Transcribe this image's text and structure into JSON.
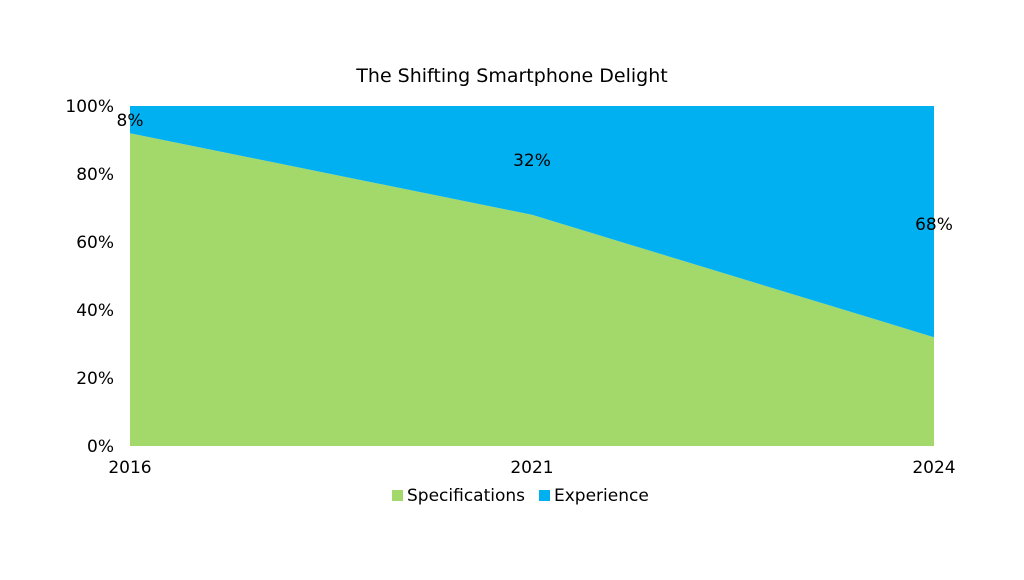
{
  "chart_data": {
    "type": "area",
    "stacked": true,
    "percent": true,
    "title": "The Shifting Smartphone Delight",
    "categories": [
      "2016",
      "2021",
      "2024"
    ],
    "series": [
      {
        "name": "Specifications",
        "values": [
          92,
          68,
          32
        ],
        "color": "#a3d86b"
      },
      {
        "name": "Experience",
        "values": [
          8,
          32,
          68
        ],
        "color": "#00b0f0"
      }
    ],
    "data_labels": [
      "8%",
      "32%",
      "68%"
    ],
    "y_ticks": [
      "0%",
      "20%",
      "40%",
      "60%",
      "80%",
      "100%"
    ],
    "ylim": [
      0,
      100
    ],
    "grid": false,
    "legend_position": "bottom"
  }
}
